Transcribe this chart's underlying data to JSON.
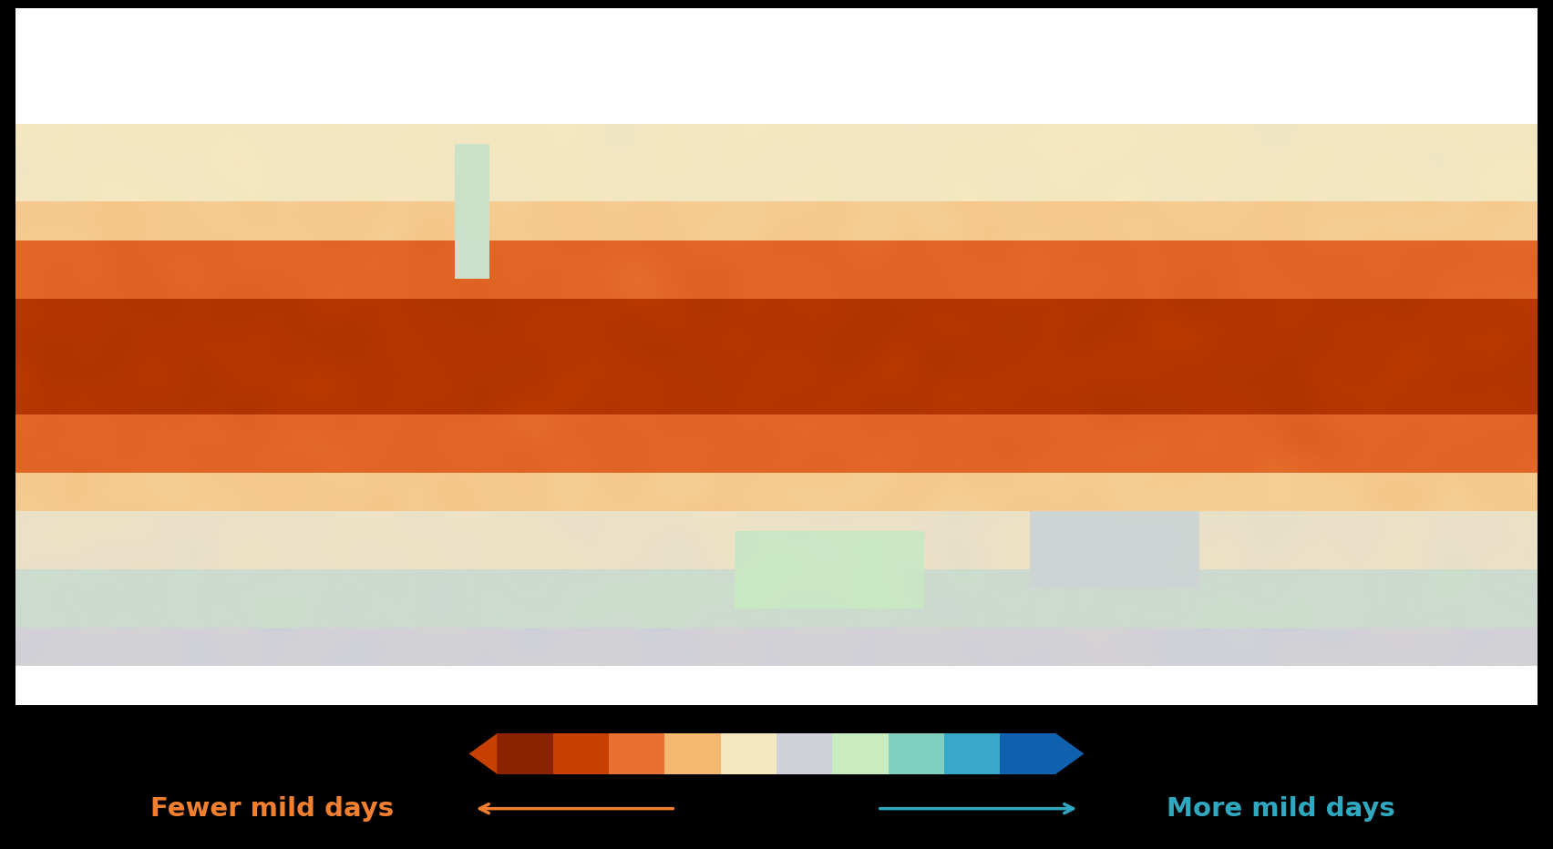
{
  "figsize": [
    17.04,
    9.32
  ],
  "dpi": 100,
  "background_color": "#000000",
  "map_bg": "#ffffff",
  "ocean_color": "#ffffff",
  "land_nodata_color": "#cccccc",
  "colorbar_colors": [
    "#8B2200",
    "#C84000",
    "#E87030",
    "#F5B870",
    "#F5E8C0",
    "#D0D0D8",
    "#C8ECC0",
    "#80D0C0",
    "#38A8C8",
    "#1060B0"
  ],
  "cb_left_triangle_color": "#C84000",
  "cb_right_triangle_color": "#1060B0",
  "label_left_color": "#F08030",
  "label_right_color": "#30A8C0",
  "label_left": "Fewer mild days",
  "label_right": "More mild days",
  "arrow_left_color": "#F08030",
  "arrow_right_color": "#30A8C0",
  "vmin": -100,
  "vmax": 100,
  "map_border_color": "#000000",
  "map_border_lw": 1.5
}
